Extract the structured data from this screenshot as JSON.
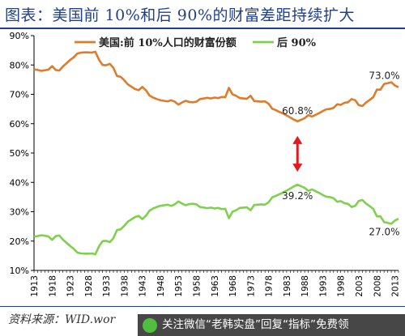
{
  "title": "图表：美国前 10%和后 90%的财富差距持续扩大",
  "source": "资料来源：WID.wor",
  "banner": {
    "text": "关注微信“老韩实盘”回复“指标”免费领"
  },
  "colors": {
    "top10": "#e07b2a",
    "bottom90": "#80d04f",
    "arrow": "#e11a1a",
    "axis": "#000000"
  },
  "chart_data": {
    "type": "line",
    "title": "",
    "xlabel": "",
    "ylabel": "",
    "xlim": [
      1913,
      2014
    ],
    "ylim": [
      10,
      90
    ],
    "yticks": [
      10,
      20,
      30,
      40,
      50,
      60,
      70,
      80,
      90
    ],
    "ytick_labels": [
      "10%",
      "20%",
      "30%",
      "40%",
      "50%",
      "60%",
      "70%",
      "80%",
      "90%"
    ],
    "xticks": [
      1913,
      1918,
      1923,
      1928,
      1933,
      1938,
      1943,
      1948,
      1953,
      1958,
      1963,
      1968,
      1973,
      1978,
      1983,
      1988,
      1993,
      1998,
      2003,
      2008,
      2013
    ],
    "grid": false,
    "legend": "top",
    "series": [
      {
        "name": "美国:前 10%人口的财富份额",
        "x": [
          1913,
          1914,
          1915,
          1916,
          1917,
          1918,
          1919,
          1920,
          1921,
          1922,
          1923,
          1924,
          1925,
          1926,
          1927,
          1928,
          1929,
          1930,
          1931,
          1932,
          1933,
          1934,
          1935,
          1936,
          1937,
          1938,
          1939,
          1940,
          1941,
          1942,
          1943,
          1944,
          1945,
          1946,
          1947,
          1948,
          1949,
          1950,
          1951,
          1952,
          1953,
          1954,
          1955,
          1956,
          1957,
          1958,
          1959,
          1960,
          1961,
          1962,
          1963,
          1964,
          1965,
          1966,
          1967,
          1968,
          1969,
          1970,
          1971,
          1972,
          1973,
          1974,
          1975,
          1976,
          1977,
          1978,
          1979,
          1980,
          1981,
          1982,
          1983,
          1984,
          1985,
          1986,
          1987,
          1988,
          1989,
          1990,
          1991,
          1992,
          1993,
          1994,
          1995,
          1996,
          1997,
          1998,
          1999,
          2000,
          2001,
          2002,
          2003,
          2004,
          2005,
          2006,
          2007,
          2008,
          2009,
          2010,
          2011,
          2012,
          2013,
          2014
        ],
        "values": [
          78.5,
          78.3,
          78.0,
          78.2,
          78.4,
          79.6,
          78.3,
          78.1,
          79.5,
          80.6,
          81.7,
          82.6,
          83.9,
          84.2,
          84.3,
          84.3,
          84.2,
          84.5,
          81.8,
          80.0,
          79.9,
          80.4,
          79.0,
          76.2,
          76.0,
          74.8,
          73.4,
          72.6,
          71.8,
          71.4,
          72.5,
          71.4,
          69.6,
          68.9,
          68.4,
          68.0,
          67.8,
          67.6,
          68.0,
          67.5,
          66.5,
          67.2,
          67.8,
          67.4,
          67.3,
          67.5,
          68.4,
          68.6,
          68.8,
          68.6,
          68.9,
          68.7,
          69.1,
          69.0,
          72.2,
          70.0,
          69.5,
          68.7,
          68.6,
          68.5,
          69.5,
          67.7,
          67.6,
          67.5,
          67.6,
          66.8,
          65.1,
          64.6,
          64.0,
          63.5,
          62.8,
          62.1,
          61.4,
          60.8,
          61.3,
          61.9,
          62.9,
          62.4,
          63.0,
          63.6,
          64.3,
          64.9,
          65.0,
          65.4,
          66.6,
          66.4,
          67.1,
          67.3,
          68.4,
          68.0,
          66.3,
          66.0,
          67.2,
          68.1,
          69.0,
          71.6,
          71.6,
          73.5,
          73.8,
          74.1,
          73.0,
          72.4
        ],
        "label": "73.0%",
        "label_x": 2013
      },
      {
        "name": "后 90%",
        "x": [
          1913,
          1914,
          1915,
          1916,
          1917,
          1918,
          1919,
          1920,
          1921,
          1922,
          1923,
          1924,
          1925,
          1926,
          1927,
          1928,
          1929,
          1930,
          1931,
          1932,
          1933,
          1934,
          1935,
          1936,
          1937,
          1938,
          1939,
          1940,
          1941,
          1942,
          1943,
          1944,
          1945,
          1946,
          1947,
          1948,
          1949,
          1950,
          1951,
          1952,
          1953,
          1954,
          1955,
          1956,
          1957,
          1958,
          1959,
          1960,
          1961,
          1962,
          1963,
          1964,
          1965,
          1966,
          1967,
          1968,
          1969,
          1970,
          1971,
          1972,
          1973,
          1974,
          1975,
          1976,
          1977,
          1978,
          1979,
          1980,
          1981,
          1982,
          1983,
          1984,
          1985,
          1986,
          1987,
          1988,
          1989,
          1990,
          1991,
          1992,
          1993,
          1994,
          1995,
          1996,
          1997,
          1998,
          1999,
          2000,
          2001,
          2002,
          2003,
          2004,
          2005,
          2006,
          2007,
          2008,
          2009,
          2010,
          2011,
          2012,
          2013,
          2014
        ],
        "values": [
          21.5,
          21.7,
          22.0,
          21.8,
          21.6,
          20.4,
          21.7,
          21.9,
          20.5,
          19.4,
          18.3,
          17.4,
          16.1,
          15.8,
          15.7,
          15.7,
          15.8,
          15.5,
          18.2,
          20.0,
          20.1,
          19.6,
          21.0,
          23.8,
          24.0,
          25.2,
          26.6,
          27.4,
          28.2,
          28.6,
          27.5,
          28.6,
          30.4,
          31.1,
          31.6,
          32.0,
          32.2,
          32.4,
          32.0,
          32.5,
          33.5,
          32.8,
          32.2,
          32.6,
          32.7,
          32.5,
          31.6,
          31.4,
          31.2,
          31.4,
          31.1,
          31.3,
          30.9,
          31.0,
          27.8,
          30.0,
          30.5,
          31.3,
          31.4,
          31.5,
          30.5,
          32.3,
          32.4,
          32.5,
          32.4,
          33.2,
          34.9,
          35.4,
          36.0,
          36.5,
          37.2,
          37.9,
          38.6,
          39.2,
          38.7,
          38.1,
          37.1,
          37.6,
          37.0,
          36.4,
          35.7,
          35.1,
          35.0,
          34.6,
          33.4,
          33.6,
          32.9,
          32.7,
          31.6,
          32.0,
          33.7,
          34.0,
          32.8,
          31.9,
          31.0,
          28.4,
          28.4,
          26.5,
          26.2,
          25.9,
          27.0,
          27.6
        ],
        "label": "27.0%",
        "label_x": 2013
      }
    ],
    "annotations": [
      {
        "text": "60.8%",
        "x": 1986,
        "y": 60.8,
        "series": 0
      },
      {
        "text": "39.2%",
        "x": 1986,
        "y": 39.2,
        "series": 1
      }
    ],
    "arrow": {
      "x": 1986,
      "y_from": 60.8,
      "y_to": 39.2
    }
  }
}
